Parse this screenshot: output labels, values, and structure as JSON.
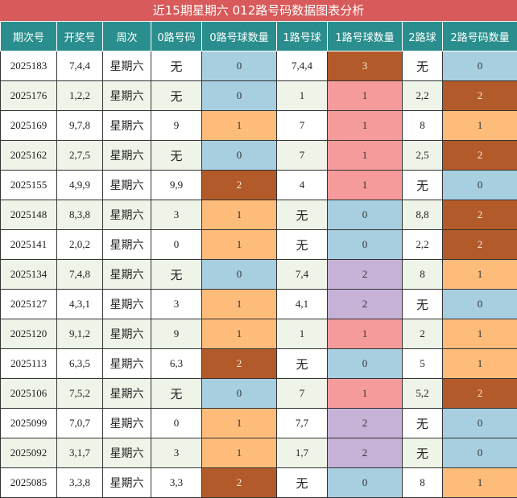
{
  "title": "近15期星期六 012路号码数据图表分析",
  "headers": [
    "期次号",
    "开奖号",
    "周次",
    "0路号码",
    "0路号球数量",
    "1路号球",
    "1路号球数量",
    "2路球",
    "2路号码数量"
  ],
  "rows": [
    {
      "period": "2025183",
      "draw": "7,4,4",
      "week": "星期六",
      "r0": "无",
      "r0n": "0",
      "r1": "7,4,4",
      "r1n": "3",
      "r2": "无",
      "r2n": "0"
    },
    {
      "period": "2025176",
      "draw": "1,2,2",
      "week": "星期六",
      "r0": "无",
      "r0n": "0",
      "r1": "1",
      "r1n": "1",
      "r2": "2,2",
      "r2n": "2"
    },
    {
      "period": "2025169",
      "draw": "9,7,8",
      "week": "星期六",
      "r0": "9",
      "r0n": "1",
      "r1": "7",
      "r1n": "1",
      "r2": "8",
      "r2n": "1"
    },
    {
      "period": "2025162",
      "draw": "2,7,5",
      "week": "星期六",
      "r0": "无",
      "r0n": "0",
      "r1": "7",
      "r1n": "1",
      "r2": "2,5",
      "r2n": "2"
    },
    {
      "period": "2025155",
      "draw": "4,9,9",
      "week": "星期六",
      "r0": "9,9",
      "r0n": "2",
      "r1": "4",
      "r1n": "1",
      "r2": "无",
      "r2n": "0"
    },
    {
      "period": "2025148",
      "draw": "8,3,8",
      "week": "星期六",
      "r0": "3",
      "r0n": "1",
      "r1": "无",
      "r1n": "0",
      "r2": "8,8",
      "r2n": "2"
    },
    {
      "period": "2025141",
      "draw": "2,0,2",
      "week": "星期六",
      "r0": "0",
      "r0n": "1",
      "r1": "无",
      "r1n": "0",
      "r2": "2,2",
      "r2n": "2"
    },
    {
      "period": "2025134",
      "draw": "7,4,8",
      "week": "星期六",
      "r0": "无",
      "r0n": "0",
      "r1": "7,4",
      "r1n": "2",
      "r2": "8",
      "r2n": "1"
    },
    {
      "period": "2025127",
      "draw": "4,3,1",
      "week": "星期六",
      "r0": "3",
      "r0n": "1",
      "r1": "4,1",
      "r1n": "2",
      "r2": "无",
      "r2n": "0"
    },
    {
      "period": "2025120",
      "draw": "9,1,2",
      "week": "星期六",
      "r0": "9",
      "r0n": "1",
      "r1": "1",
      "r1n": "1",
      "r2": "2",
      "r2n": "1"
    },
    {
      "period": "2025113",
      "draw": "6,3,5",
      "week": "星期六",
      "r0": "6,3",
      "r0n": "2",
      "r1": "无",
      "r1n": "0",
      "r2": "5",
      "r2n": "1"
    },
    {
      "period": "2025106",
      "draw": "7,5,2",
      "week": "星期六",
      "r0": "无",
      "r0n": "0",
      "r1": "7",
      "r1n": "1",
      "r2": "5,2",
      "r2n": "2"
    },
    {
      "period": "2025099",
      "draw": "7,0,7",
      "week": "星期六",
      "r0": "0",
      "r0n": "1",
      "r1": "7,7",
      "r1n": "2",
      "r2": "无",
      "r2n": "0"
    },
    {
      "period": "2025092",
      "draw": "3,1,7",
      "week": "星期六",
      "r0": "3",
      "r0n": "1",
      "r1": "1,7",
      "r1n": "2",
      "r2": "无",
      "r2n": "0"
    },
    {
      "period": "2025085",
      "draw": "3,3,8",
      "week": "星期六",
      "r0": "3,3",
      "r0n": "2",
      "r1": "无",
      "r1n": "0",
      "r2": "8",
      "r2n": "1"
    }
  ]
}
